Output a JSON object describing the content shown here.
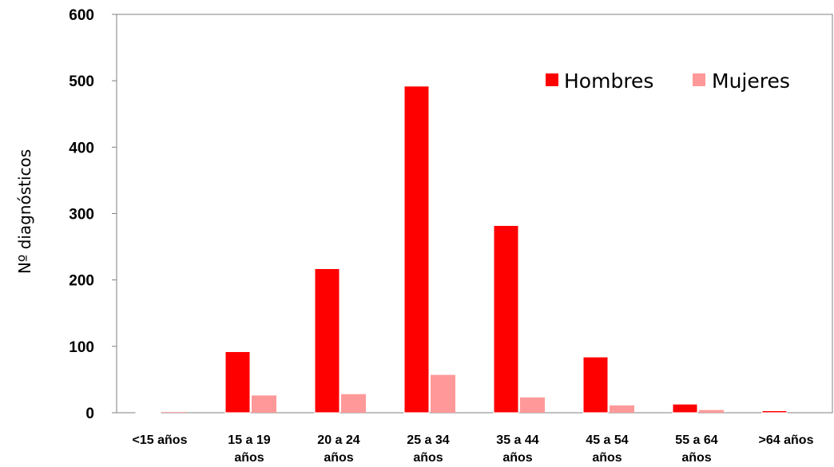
{
  "chart_data": {
    "type": "bar",
    "title": "",
    "xlabel": "",
    "ylabel": "Nº diagnósticos",
    "ylim": [
      0,
      600
    ],
    "yticks": [
      "0",
      "100",
      "200",
      "300",
      "400",
      "500",
      "600"
    ],
    "grid": false,
    "legend_position": "top-right",
    "categories": [
      [
        "<15 años"
      ],
      [
        "15 a 19",
        "años"
      ],
      [
        "20 a 24",
        "años"
      ],
      [
        "25 a 34",
        "años"
      ],
      [
        "35 a 44",
        "años"
      ],
      [
        "45 a 54",
        "años"
      ],
      [
        "55 a 64",
        "años"
      ],
      [
        ">64 años"
      ]
    ],
    "series": [
      {
        "name": "Hombres",
        "color": "#ff0000",
        "values": [
          1,
          92,
          217,
          492,
          282,
          84,
          13,
          3
        ]
      },
      {
        "name": "Mujeres",
        "color": "#ff9999",
        "values": [
          1,
          26,
          28,
          57,
          23,
          11,
          4,
          0
        ]
      }
    ]
  }
}
